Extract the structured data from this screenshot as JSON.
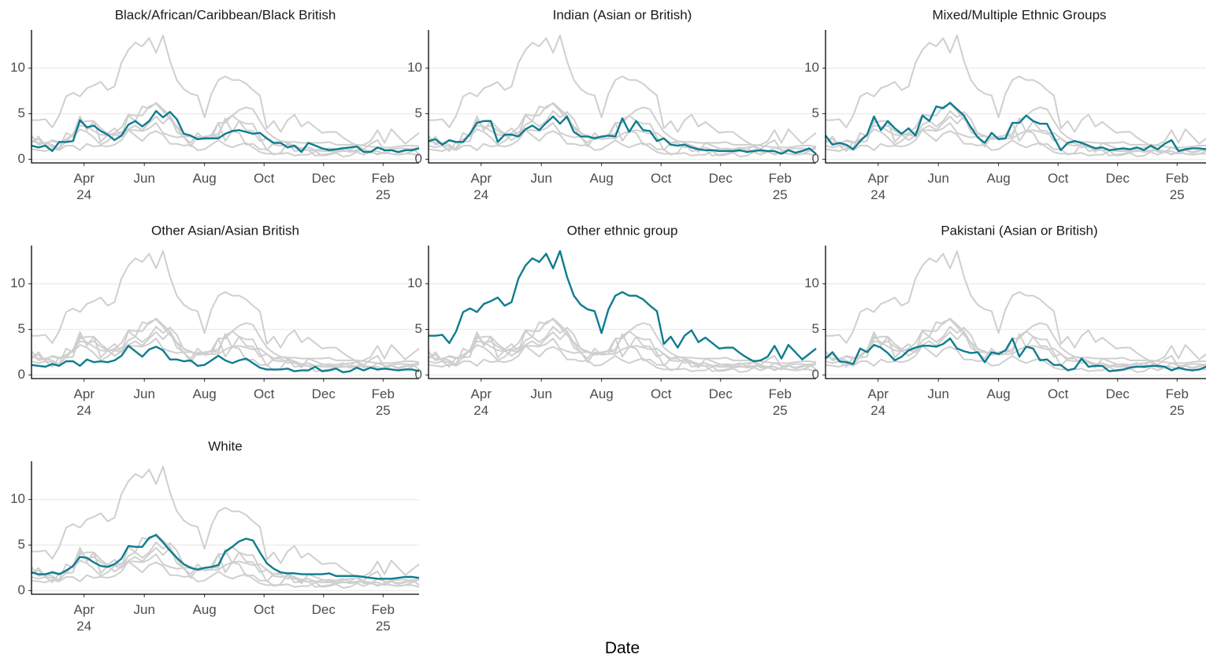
{
  "chart_data": {
    "type": "line",
    "facet": true,
    "xlabel": "Date",
    "categories": [
      null,
      null,
      null,
      null,
      null,
      null,
      null,
      null,
      null,
      null,
      null,
      null,
      null,
      null,
      null,
      null,
      null,
      null,
      null,
      null,
      null,
      null,
      null,
      null,
      null,
      null,
      null,
      null,
      null,
      null,
      null,
      null,
      null,
      null,
      null,
      null,
      null,
      null,
      null,
      null,
      null,
      null,
      null,
      null,
      null,
      null,
      null,
      null,
      null,
      null,
      null,
      null,
      null,
      null,
      null,
      null,
      null
    ],
    "xticks": [
      {
        "value": 7.6,
        "label": "Apr\n24"
      },
      {
        "value": 16.3,
        "label": "Jun"
      },
      {
        "value": 25.0,
        "label": "Aug"
      },
      {
        "value": 33.6,
        "label": "Oct"
      },
      {
        "value": 42.2,
        "label": "Dec"
      },
      {
        "value": 50.8,
        "label": "Feb\n25"
      }
    ],
    "ylim": [
      -0.4,
      14.2
    ],
    "yticks": [
      0,
      5,
      10
    ],
    "grid": true,
    "highlight_color": "#0e7c8f",
    "background_color": "#cfcfcf",
    "series": [
      {
        "name": "Black/African/Caribbean/Black British",
        "values": [
          1.5,
          1.3,
          1.5,
          0.9,
          1.9,
          1.9,
          2.0,
          4.3,
          3.5,
          3.7,
          3.1,
          2.7,
          2.1,
          2.6,
          3.8,
          4.2,
          3.6,
          4.2,
          5.3,
          4.6,
          5.2,
          4.4,
          2.8,
          2.6,
          2.2,
          2.3,
          2.3,
          2.3,
          2.8,
          3.1,
          3.2,
          3.0,
          2.8,
          2.9,
          2.3,
          1.8,
          1.8,
          1.3,
          1.5,
          0.8,
          1.8,
          1.5,
          1.2,
          1.0,
          1.1,
          1.2,
          1.3,
          1.4,
          0.8,
          0.8,
          1.3,
          1.0,
          1.0,
          0.8,
          1.0,
          1.0,
          1.2
        ]
      },
      {
        "name": "Indian (Asian or British)",
        "values": [
          2.0,
          2.2,
          1.6,
          2.1,
          1.9,
          1.9,
          2.8,
          4.0,
          4.2,
          4.2,
          1.9,
          2.7,
          2.7,
          2.5,
          3.3,
          3.7,
          3.2,
          4.0,
          4.7,
          3.9,
          4.7,
          3.0,
          2.5,
          2.5,
          2.3,
          2.5,
          2.6,
          2.5,
          4.5,
          3.0,
          4.2,
          3.2,
          3.1,
          2.0,
          2.3,
          1.6,
          1.5,
          1.6,
          1.3,
          1.1,
          1.0,
          1.0,
          0.9,
          0.9,
          0.9,
          1.0,
          0.8,
          0.9,
          1.0,
          0.9,
          0.9,
          0.6,
          1.0,
          0.7,
          0.9,
          1.2,
          0.6
        ]
      },
      {
        "name": "Mixed/Multiple Ethnic Groups",
        "values": [
          2.6,
          1.6,
          1.8,
          1.6,
          1.1,
          2.0,
          2.7,
          4.7,
          3.2,
          4.2,
          3.4,
          2.8,
          3.4,
          2.6,
          4.8,
          4.2,
          5.8,
          5.6,
          6.2,
          5.5,
          4.8,
          3.5,
          2.4,
          1.8,
          2.9,
          2.2,
          2.3,
          4.0,
          4.0,
          4.8,
          4.2,
          3.9,
          3.9,
          2.4,
          1.0,
          1.8,
          2.0,
          1.8,
          1.5,
          1.2,
          1.3,
          1.0,
          1.1,
          1.2,
          1.1,
          1.3,
          1.0,
          1.5,
          1.1,
          1.7,
          2.1,
          0.9,
          1.1,
          1.2,
          1.2,
          1.1,
          1.3
        ]
      },
      {
        "name": "Other Asian/Asian British",
        "values": [
          1.1,
          1.0,
          0.9,
          1.2,
          1.0,
          1.5,
          1.5,
          1.0,
          1.7,
          1.4,
          1.5,
          1.4,
          1.6,
          2.1,
          3.2,
          2.6,
          2.0,
          2.8,
          3.1,
          2.7,
          1.7,
          1.7,
          1.5,
          1.6,
          1.0,
          1.1,
          1.6,
          2.1,
          1.6,
          1.3,
          1.6,
          1.8,
          1.3,
          0.8,
          0.6,
          0.6,
          0.6,
          0.7,
          0.4,
          0.5,
          0.5,
          0.9,
          0.4,
          0.5,
          0.7,
          0.3,
          0.4,
          0.8,
          0.5,
          0.8,
          0.6,
          0.7,
          0.6,
          0.5,
          0.6,
          0.6,
          0.4
        ]
      },
      {
        "name": "Other ethnic group",
        "values": [
          4.3,
          4.3,
          4.4,
          3.5,
          4.8,
          6.9,
          7.3,
          6.9,
          7.8,
          8.1,
          8.5,
          7.6,
          8.0,
          10.6,
          12.0,
          12.8,
          12.4,
          13.3,
          11.7,
          13.6,
          10.8,
          8.7,
          7.7,
          7.2,
          7.0,
          4.6,
          7.2,
          8.7,
          9.1,
          8.7,
          8.7,
          8.3,
          7.6,
          7.0,
          3.4,
          4.2,
          3.0,
          4.3,
          4.9,
          3.6,
          4.1,
          3.5,
          2.9,
          3.0,
          3.0,
          2.4,
          1.9,
          1.5,
          1.6,
          2.0,
          3.2,
          1.8,
          3.3,
          2.5,
          1.7,
          2.3,
          2.9
        ]
      },
      {
        "name": "Pakistani (Asian or British)",
        "values": [
          1.8,
          2.5,
          1.5,
          1.4,
          1.2,
          2.9,
          2.5,
          3.3,
          3.0,
          2.4,
          1.6,
          2.0,
          2.7,
          3.0,
          3.2,
          3.2,
          3.1,
          3.4,
          4.0,
          2.9,
          2.6,
          2.4,
          2.5,
          1.4,
          2.5,
          2.3,
          2.7,
          4.0,
          2.0,
          3.1,
          2.9,
          1.6,
          1.7,
          1.1,
          1.1,
          0.5,
          0.7,
          1.8,
          0.9,
          1.0,
          1.0,
          0.4,
          0.5,
          0.6,
          0.8,
          0.9,
          0.9,
          1.0,
          1.0,
          0.9,
          0.5,
          0.8,
          0.6,
          0.5,
          0.6,
          0.9,
          1.2
        ]
      },
      {
        "name": "White",
        "values": [
          2.0,
          1.8,
          1.8,
          2.0,
          1.8,
          2.2,
          2.7,
          3.7,
          3.6,
          3.1,
          2.7,
          2.6,
          2.9,
          3.5,
          4.9,
          4.8,
          4.8,
          5.8,
          6.1,
          5.3,
          4.4,
          3.6,
          2.9,
          2.5,
          2.3,
          2.5,
          2.6,
          2.8,
          4.3,
          4.8,
          5.4,
          5.7,
          5.5,
          4.2,
          3.0,
          2.4,
          2.0,
          1.9,
          1.9,
          1.8,
          1.8,
          1.8,
          1.8,
          1.9,
          1.6,
          1.6,
          1.6,
          1.6,
          1.5,
          1.4,
          1.3,
          1.3,
          1.3,
          1.4,
          1.5,
          1.5,
          1.4
        ]
      }
    ]
  }
}
